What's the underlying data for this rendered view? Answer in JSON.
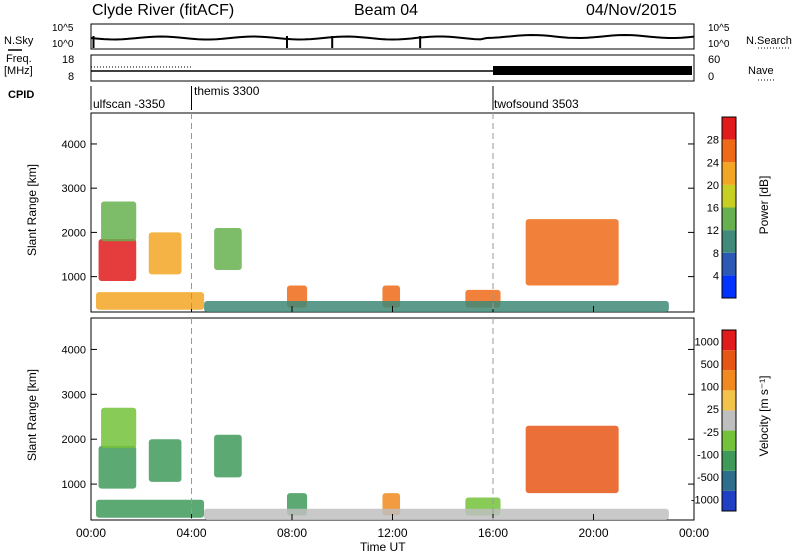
{
  "header": {
    "station": "Clyde River (fitACF)",
    "beam": "Beam 04",
    "date": "04/Nov/2015"
  },
  "top_panel": {
    "nsky_label": "N.Sky",
    "nsearch_label": "N.Search",
    "left_ticks": [
      "10^5",
      "10^0"
    ],
    "right_ticks": [
      "10^5",
      "10^0"
    ]
  },
  "freq_panel": {
    "freq_label": "Freq.",
    "unit_label": "[MHz]",
    "nave_label": "Nave",
    "left_ticks": [
      "18",
      "8"
    ],
    "right_ticks": [
      "60",
      "0"
    ]
  },
  "cpid": {
    "label": "CPID",
    "segments": [
      {
        "name": "ulfscan -3350",
        "start_hour": 0
      },
      {
        "name": "themis 3300",
        "start_hour": 4
      },
      {
        "name": "twofsound 3503",
        "start_hour": 16
      }
    ]
  },
  "x_axis": {
    "title": "Time UT",
    "ticks": [
      "00:00",
      "04:00",
      "08:00",
      "12:00",
      "16:00",
      "20:00",
      "00:00"
    ],
    "range_hours": [
      0,
      24
    ]
  },
  "chart_data": [
    {
      "type": "heatmap",
      "name": "power",
      "ylabel": "Slant Range [km]",
      "yticks": [
        "1000",
        "2000",
        "3000",
        "4000"
      ],
      "ylim": [
        200,
        4700
      ],
      "colorbar_label": "Power [dB]",
      "colorbar_ticks": [
        "4",
        "8",
        "12",
        "16",
        "20",
        "24",
        "28"
      ],
      "colors": [
        "#0033ff",
        "#2c59b5",
        "#3f8a78",
        "#66b04f",
        "#c6cf22",
        "#f2a623",
        "#ee6a17",
        "#e11b1b"
      ],
      "regions": [
        {
          "t0": 0.3,
          "t1": 1.8,
          "r0": 900,
          "r1": 1850,
          "level": 7
        },
        {
          "t0": 0.4,
          "t1": 1.8,
          "r0": 1800,
          "r1": 2700,
          "level": 3
        },
        {
          "t0": 2.3,
          "t1": 3.6,
          "r0": 1050,
          "r1": 2000,
          "level": 5
        },
        {
          "t0": 4.9,
          "t1": 6.0,
          "r0": 1150,
          "r1": 2100,
          "level": 3
        },
        {
          "t0": 0.2,
          "t1": 4.5,
          "r0": 250,
          "r1": 650,
          "level": 5
        },
        {
          "t0": 7.8,
          "t1": 8.6,
          "r0": 300,
          "r1": 800,
          "level": 6
        },
        {
          "t0": 11.6,
          "t1": 12.3,
          "r0": 300,
          "r1": 800,
          "level": 6
        },
        {
          "t0": 14.9,
          "t1": 16.3,
          "r0": 300,
          "r1": 700,
          "level": 6
        },
        {
          "t0": 17.3,
          "t1": 21.0,
          "r0": 800,
          "r1": 2300,
          "level": 6
        },
        {
          "t0": 4.5,
          "t1": 23.0,
          "r0": 200,
          "r1": 450,
          "level": 2
        }
      ]
    },
    {
      "type": "heatmap",
      "name": "velocity",
      "ylabel": "Slant Range [km]",
      "yticks": [
        "1000",
        "2000",
        "3000",
        "4000"
      ],
      "ylim": [
        200,
        4700
      ],
      "colorbar_label": "Velocity [m s⁻¹]",
      "colorbar_ticks": [
        "1000",
        "500",
        "100",
        "25",
        "-25",
        "-100",
        "-500",
        "-1000"
      ],
      "colors": [
        "#1f3fc4",
        "#2e6e8c",
        "#3f9a5a",
        "#74c23a",
        "#bfbfbf",
        "#f2c34a",
        "#f0891f",
        "#e85615",
        "#e11b1b"
      ],
      "regions": [
        {
          "t0": 0.3,
          "t1": 1.8,
          "r0": 900,
          "r1": 1850,
          "level": 2
        },
        {
          "t0": 0.4,
          "t1": 1.8,
          "r0": 1800,
          "r1": 2700,
          "level": 3
        },
        {
          "t0": 2.3,
          "t1": 3.6,
          "r0": 1050,
          "r1": 2000,
          "level": 2
        },
        {
          "t0": 4.9,
          "t1": 6.0,
          "r0": 1150,
          "r1": 2100,
          "level": 2
        },
        {
          "t0": 0.2,
          "t1": 4.5,
          "r0": 250,
          "r1": 650,
          "level": 2
        },
        {
          "t0": 7.8,
          "t1": 8.6,
          "r0": 300,
          "r1": 800,
          "level": 2
        },
        {
          "t0": 11.6,
          "t1": 12.3,
          "r0": 300,
          "r1": 800,
          "level": 6
        },
        {
          "t0": 14.9,
          "t1": 16.3,
          "r0": 300,
          "r1": 700,
          "level": 3
        },
        {
          "t0": 17.3,
          "t1": 21.0,
          "r0": 800,
          "r1": 2300,
          "level": 7
        },
        {
          "t0": 4.5,
          "t1": 23.0,
          "r0": 200,
          "r1": 450,
          "level": 4
        }
      ]
    }
  ]
}
